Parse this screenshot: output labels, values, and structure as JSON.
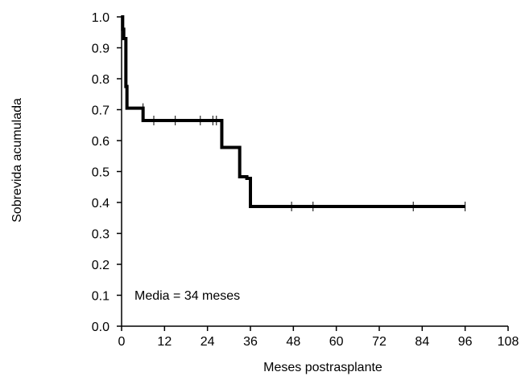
{
  "chart_data": {
    "type": "line",
    "title": "",
    "xlabel": "Meses postrasplante",
    "ylabel": "Sobrevida acumulada",
    "xlim": [
      0,
      108
    ],
    "ylim": [
      0,
      1
    ],
    "x_ticks": [
      0,
      12,
      24,
      36,
      48,
      60,
      72,
      84,
      96,
      108
    ],
    "y_ticks": [
      "0.0",
      "0.1",
      "0.2",
      "0.3",
      "0.4",
      "0.5",
      "0.6",
      "0.7",
      "0.8",
      "0.9",
      "1.0"
    ],
    "grid": false,
    "legend": "none",
    "annotation": "Media = 34 meses",
    "line_color": "#000000",
    "series": [
      {
        "step": true,
        "x": [
          0,
          0.3,
          0.6,
          1.2,
          1.5,
          6.0,
          28.0,
          33.0,
          35.0,
          36.0,
          96.0
        ],
        "y": [
          1.0,
          0.96,
          0.93,
          0.775,
          0.705,
          0.665,
          0.578,
          0.483,
          0.478,
          0.387,
          0.387
        ],
        "censored": [
          {
            "x": 6.0,
            "y": 0.705
          },
          {
            "x": 9.0,
            "y": 0.665
          },
          {
            "x": 15.0,
            "y": 0.665
          },
          {
            "x": 22.0,
            "y": 0.665
          },
          {
            "x": 25.5,
            "y": 0.665
          },
          {
            "x": 26.5,
            "y": 0.665
          },
          {
            "x": 47.5,
            "y": 0.387
          },
          {
            "x": 53.5,
            "y": 0.387
          },
          {
            "x": 81.5,
            "y": 0.387
          },
          {
            "x": 96.0,
            "y": 0.387
          }
        ]
      }
    ]
  }
}
